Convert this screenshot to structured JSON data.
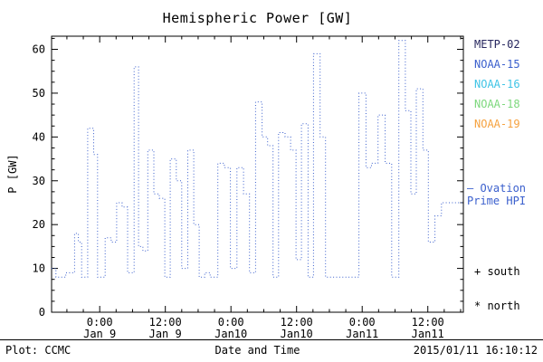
{
  "title": "Hemispheric Power [GW]",
  "legend": {
    "items": [
      {
        "label": "METP-02",
        "color": "#26265e"
      },
      {
        "label": "NOAA-15",
        "color": "#3a5fcd"
      },
      {
        "label": "NOAA-16",
        "color": "#3fc4e6"
      },
      {
        "label": "NOAA-18",
        "color": "#7dd87d"
      },
      {
        "label": "NOAA-19",
        "color": "#f6a23f"
      }
    ]
  },
  "annotation": {
    "line1": "– Ovation",
    "line2": "Prime HPI",
    "color": "#3a5fcd"
  },
  "markers": {
    "south": "+ south",
    "north": "* north"
  },
  "footer": {
    "left": "Plot: CCMC",
    "right": "2015/01/11 16:10:12"
  },
  "chart_data": {
    "type": "line",
    "style": "dotted-step",
    "title": "Hemispheric Power [GW]",
    "xlabel": "Date and Time",
    "ylabel": "P [GW]",
    "ylim": [
      0,
      63
    ],
    "xlim_hours": [
      -8.8,
      66.5
    ],
    "x_epoch": "hours relative to 2015-01-09 00:00",
    "grid": false,
    "legend_position": "right-outside",
    "line_color": "#3a5fcd",
    "y_ticks": [
      0,
      10,
      20,
      30,
      40,
      50,
      60
    ],
    "y_minor_step": 2.5,
    "x_minor_step": 3,
    "x_ticks": [
      {
        "hour": 0,
        "time": "0:00",
        "date": "Jan 9"
      },
      {
        "hour": 12,
        "time": "12:00",
        "date": "Jan 9"
      },
      {
        "hour": 24,
        "time": "0:00",
        "date": "Jan10"
      },
      {
        "hour": 36,
        "time": "12:00",
        "date": "Jan10"
      },
      {
        "hour": 48,
        "time": "0:00",
        "date": "Jan11"
      },
      {
        "hour": 60,
        "time": "12:00",
        "date": "Jan11"
      }
    ],
    "steps": [
      [
        -8.8,
        -8.0,
        10
      ],
      [
        -8.0,
        -6.2,
        8
      ],
      [
        -6.2,
        -4.6,
        9
      ],
      [
        -4.6,
        -3.9,
        18
      ],
      [
        -3.9,
        -3.3,
        16
      ],
      [
        -3.3,
        -2.2,
        8
      ],
      [
        -2.2,
        -1.1,
        42
      ],
      [
        -1.1,
        -0.4,
        36
      ],
      [
        -0.4,
        1.0,
        8
      ],
      [
        1.0,
        2.1,
        17
      ],
      [
        2.1,
        3.1,
        16
      ],
      [
        3.1,
        4.1,
        25
      ],
      [
        4.1,
        5.1,
        24
      ],
      [
        5.1,
        6.3,
        9
      ],
      [
        6.3,
        7.1,
        56
      ],
      [
        7.1,
        7.9,
        15
      ],
      [
        7.9,
        8.8,
        14
      ],
      [
        8.8,
        9.9,
        37
      ],
      [
        9.9,
        10.9,
        27
      ],
      [
        10.9,
        11.9,
        26
      ],
      [
        11.9,
        12.9,
        8
      ],
      [
        12.9,
        14.0,
        35
      ],
      [
        14.0,
        15.0,
        30
      ],
      [
        15.0,
        16.1,
        10
      ],
      [
        16.1,
        17.2,
        37
      ],
      [
        17.2,
        18.2,
        20
      ],
      [
        18.2,
        19.2,
        8
      ],
      [
        19.2,
        20.2,
        9
      ],
      [
        20.2,
        21.6,
        8
      ],
      [
        21.6,
        22.8,
        34
      ],
      [
        22.8,
        23.9,
        33
      ],
      [
        23.9,
        25.1,
        10
      ],
      [
        25.1,
        26.3,
        33
      ],
      [
        26.3,
        27.4,
        27
      ],
      [
        27.4,
        28.5,
        9
      ],
      [
        28.5,
        29.7,
        48
      ],
      [
        29.7,
        30.7,
        40
      ],
      [
        30.7,
        31.7,
        38
      ],
      [
        31.7,
        32.7,
        8
      ],
      [
        32.7,
        33.9,
        41
      ],
      [
        33.9,
        34.9,
        40
      ],
      [
        34.9,
        35.9,
        37
      ],
      [
        35.9,
        36.9,
        12
      ],
      [
        36.9,
        38.1,
        43
      ],
      [
        38.1,
        39.1,
        8
      ],
      [
        39.1,
        40.3,
        59
      ],
      [
        40.3,
        41.3,
        40
      ],
      [
        41.3,
        47.4,
        8
      ],
      [
        47.4,
        48.7,
        50
      ],
      [
        48.7,
        49.7,
        33
      ],
      [
        49.7,
        50.9,
        34
      ],
      [
        50.9,
        52.2,
        45
      ],
      [
        52.2,
        53.4,
        34
      ],
      [
        53.4,
        54.7,
        8
      ],
      [
        54.7,
        55.9,
        62
      ],
      [
        55.9,
        56.9,
        46
      ],
      [
        56.9,
        57.9,
        27
      ],
      [
        57.9,
        59.1,
        51
      ],
      [
        59.1,
        60.1,
        37
      ],
      [
        60.1,
        61.3,
        16
      ],
      [
        61.3,
        62.5,
        22
      ],
      [
        62.5,
        66.5,
        25
      ]
    ]
  }
}
